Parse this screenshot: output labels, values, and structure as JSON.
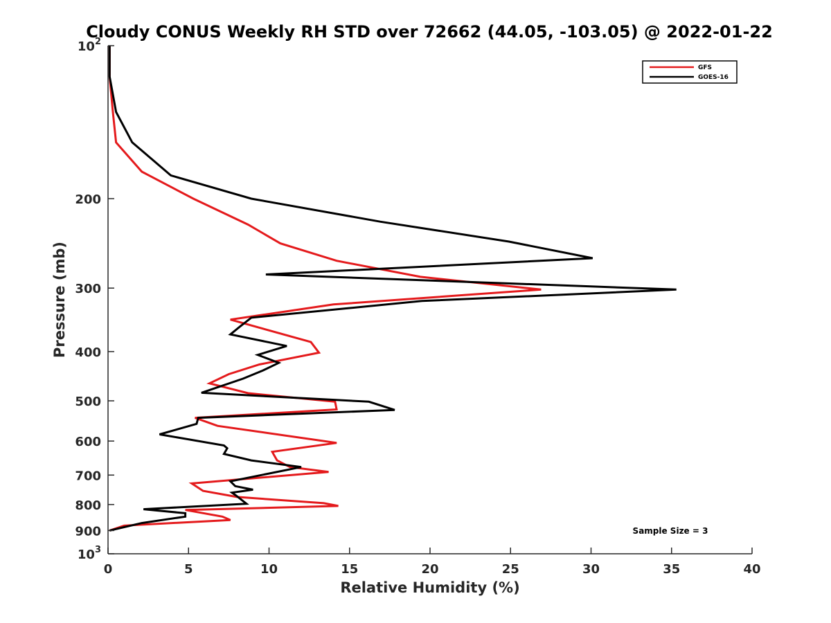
{
  "chart_data": {
    "type": "line",
    "title": "Cloudy CONUS Weekly RH STD over 72662 (44.05, -103.05) @ 2022-01-22",
    "xlabel": "Relative Humidity (%)",
    "ylabel": "Pressure (mb)",
    "xlim": [
      0,
      40
    ],
    "ylim": [
      100,
      1000
    ],
    "y_scale": "log",
    "y_reversed": true,
    "grid": false,
    "legend_position": "top-right",
    "x_ticks": [
      "0",
      "5",
      "10",
      "15",
      "20",
      "25",
      "30",
      "35",
      "40"
    ],
    "y_ticks": [
      {
        "value": 100,
        "base": "10",
        "exp": "2"
      },
      {
        "value": 200,
        "base": "200",
        "exp": ""
      },
      {
        "value": 300,
        "base": "300",
        "exp": ""
      },
      {
        "value": 400,
        "base": "400",
        "exp": ""
      },
      {
        "value": 500,
        "base": "500",
        "exp": ""
      },
      {
        "value": 600,
        "base": "600",
        "exp": ""
      },
      {
        "value": 700,
        "base": "700",
        "exp": ""
      },
      {
        "value": 800,
        "base": "800",
        "exp": ""
      },
      {
        "value": 900,
        "base": "900",
        "exp": ""
      },
      {
        "value": 1000,
        "base": "10",
        "exp": "3"
      }
    ],
    "annotation": "Sample Size = 3",
    "series": [
      {
        "name": "GFS",
        "color": "#e41a1c",
        "points": [
          [
            0.1,
            100
          ],
          [
            0.1,
            115
          ],
          [
            0.3,
            135
          ],
          [
            0.5,
            155
          ],
          [
            2.1,
            177
          ],
          [
            5.3,
            200
          ],
          [
            8.7,
            225
          ],
          [
            10.7,
            245
          ],
          [
            14.2,
            265
          ],
          [
            19.4,
            285
          ],
          [
            26.9,
            302
          ],
          [
            14.0,
            323
          ],
          [
            7.6,
            346
          ],
          [
            12.6,
            383
          ],
          [
            13.1,
            402
          ],
          [
            9.4,
            424
          ],
          [
            7.5,
            443
          ],
          [
            6.3,
            462
          ],
          [
            8.7,
            483
          ],
          [
            14.1,
            502
          ],
          [
            14.2,
            520
          ],
          [
            5.4,
            540
          ],
          [
            6.8,
            560
          ],
          [
            14.2,
            605
          ],
          [
            10.2,
            630
          ],
          [
            10.5,
            655
          ],
          [
            11.3,
            675
          ],
          [
            13.7,
            690
          ],
          [
            5.2,
            727
          ],
          [
            5.9,
            752
          ],
          [
            8.0,
            773
          ],
          [
            13.4,
            795
          ],
          [
            14.3,
            805
          ],
          [
            4.8,
            820
          ],
          [
            7.1,
            845
          ],
          [
            7.6,
            858
          ],
          [
            1.0,
            880
          ],
          [
            0.1,
            900
          ]
        ]
      },
      {
        "name": "GOES-16",
        "color": "#000000",
        "points": [
          [
            0.1,
            100
          ],
          [
            0.1,
            115
          ],
          [
            0.5,
            135
          ],
          [
            1.5,
            155
          ],
          [
            3.9,
            180
          ],
          [
            8.9,
            200
          ],
          [
            16.9,
            222
          ],
          [
            24.9,
            243
          ],
          [
            30.1,
            262
          ],
          [
            9.8,
            282
          ],
          [
            35.3,
            302
          ],
          [
            19.5,
            318
          ],
          [
            8.9,
            343
          ],
          [
            8.2,
            357
          ],
          [
            7.6,
            370
          ],
          [
            11.1,
            390
          ],
          [
            9.3,
            406
          ],
          [
            10.6,
            421
          ],
          [
            9.6,
            436
          ],
          [
            8.4,
            452
          ],
          [
            5.8,
            482
          ],
          [
            16.2,
            502
          ],
          [
            17.8,
            521
          ],
          [
            5.6,
            540
          ],
          [
            5.5,
            555
          ],
          [
            3.2,
            582
          ],
          [
            7.2,
            612
          ],
          [
            7.4,
            620
          ],
          [
            7.2,
            636
          ],
          [
            8.9,
            655
          ],
          [
            12.0,
            675
          ],
          [
            7.6,
            720
          ],
          [
            7.9,
            736
          ],
          [
            9.0,
            748
          ],
          [
            7.7,
            758
          ],
          [
            8.0,
            770
          ],
          [
            8.6,
            797
          ],
          [
            2.2,
            817
          ],
          [
            4.8,
            832
          ],
          [
            4.8,
            845
          ],
          [
            2.1,
            870
          ],
          [
            0.1,
            900
          ]
        ]
      }
    ]
  }
}
